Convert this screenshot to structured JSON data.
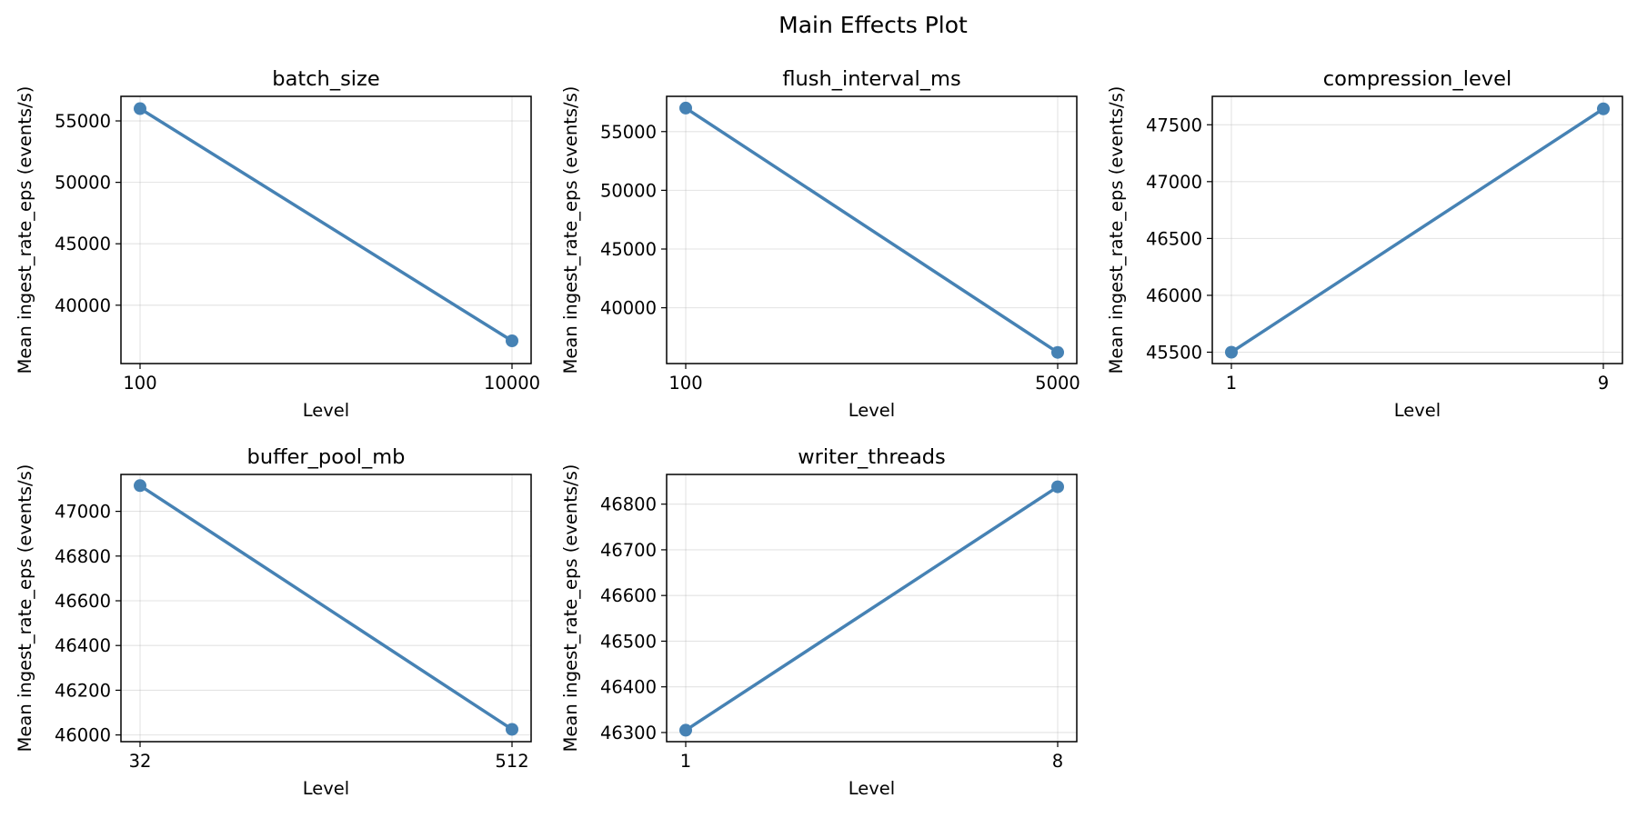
{
  "figure_title": "Main Effects Plot",
  "colors": {
    "series": "#4682b4",
    "grid": "#b0b0b0"
  },
  "chart_data": [
    {
      "type": "line",
      "title": "batch_size",
      "xlabel": "Level",
      "ylabel": "Mean ingest_rate_eps (events/s)",
      "categories": [
        "100",
        "10000"
      ],
      "values": [
        56000,
        37100
      ],
      "ylim": [
        35250,
        57000
      ],
      "yticks": [
        40000,
        45000,
        50000,
        55000
      ],
      "grid": true
    },
    {
      "type": "line",
      "title": "flush_interval_ms",
      "xlabel": "Level",
      "ylabel": "Mean ingest_rate_eps (events/s)",
      "categories": [
        "100",
        "5000"
      ],
      "values": [
        57000,
        36200
      ],
      "ylim": [
        35250,
        58000
      ],
      "yticks": [
        40000,
        45000,
        50000,
        55000
      ],
      "grid": true
    },
    {
      "type": "line",
      "title": "compression_level",
      "xlabel": "Level",
      "ylabel": "Mean ingest_rate_eps (events/s)",
      "categories": [
        "1",
        "9"
      ],
      "values": [
        45500,
        47640
      ],
      "ylim": [
        45400,
        47750
      ],
      "yticks": [
        45500,
        46000,
        46500,
        47000,
        47500
      ],
      "grid": true
    },
    {
      "type": "line",
      "title": "buffer_pool_mb",
      "xlabel": "Level",
      "ylabel": "Mean ingest_rate_eps (events/s)",
      "categories": [
        "32",
        "512"
      ],
      "values": [
        47115,
        46025
      ],
      "ylim": [
        45970,
        47165
      ],
      "yticks": [
        46000,
        46200,
        46400,
        46600,
        46800,
        47000
      ],
      "grid": true
    },
    {
      "type": "line",
      "title": "writer_threads",
      "xlabel": "Level",
      "ylabel": "Mean ingest_rate_eps (events/s)",
      "categories": [
        "1",
        "8"
      ],
      "values": [
        46305,
        46838
      ],
      "ylim": [
        46280,
        46865
      ],
      "yticks": [
        46300,
        46400,
        46500,
        46600,
        46700,
        46800
      ],
      "grid": true
    }
  ]
}
